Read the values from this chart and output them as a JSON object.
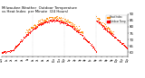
{
  "title": "Milwaukee Weather  Outdoor Temperature\nvs Heat Index  per Minute  (24 Hours)",
  "title_fontsize": 2.8,
  "background_color": "#ffffff",
  "dot_color_temp": "#ff0000",
  "dot_color_heat": "#ff8800",
  "legend_temp_label": "Outdoor Temp",
  "legend_heat_label": "Heat Index",
  "legend_temp_color": "#ff0000",
  "legend_heat_color": "#ff8800",
  "ylim": [
    57,
    90
  ],
  "xlim": [
    0,
    1440
  ],
  "dot_size": 0.4,
  "ylabel_fontsize": 2.8,
  "xlabel_fontsize": 2.0,
  "vline_positions": [
    360,
    720,
    1080
  ],
  "vline_color": "#bbbbbb",
  "vline_style": ":",
  "ytick_vals": [
    60,
    65,
    70,
    75,
    80,
    85,
    90
  ],
  "xtick_interval": 60
}
